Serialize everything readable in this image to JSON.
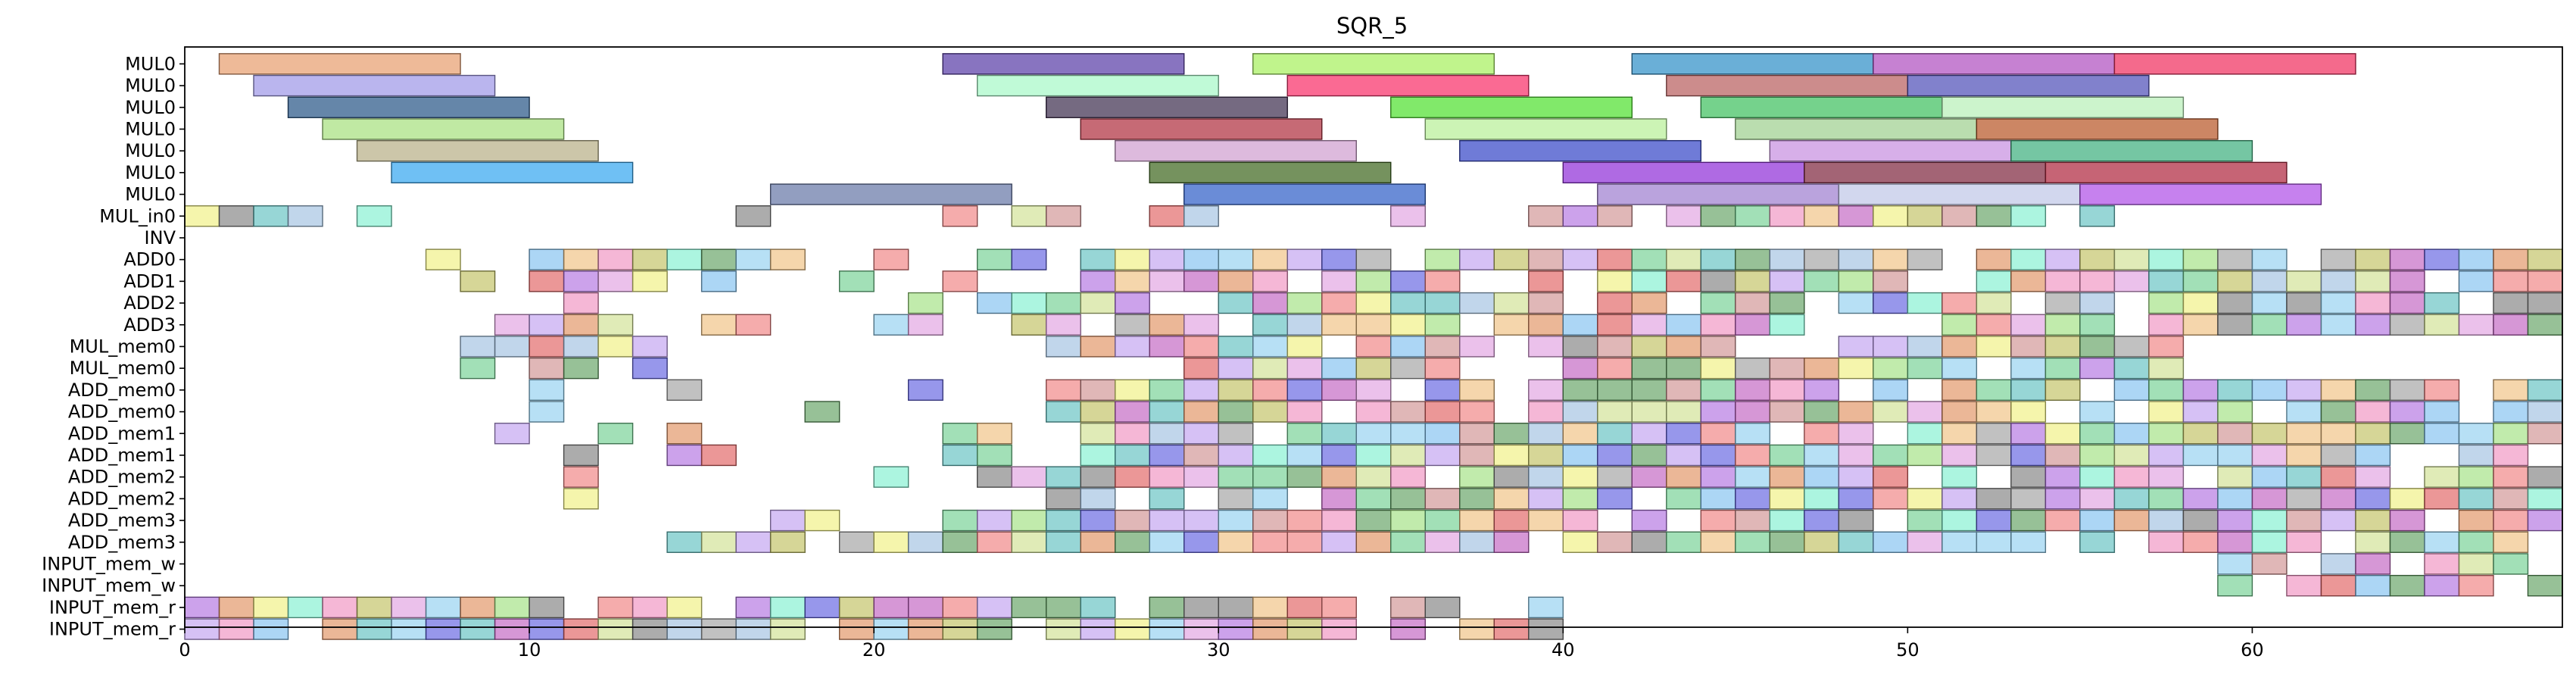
{
  "chart_data": {
    "type": "gantt",
    "title": "SQR_5",
    "xlim": [
      0,
      69
    ],
    "xticks": [
      0,
      10,
      20,
      30,
      40,
      50,
      60
    ],
    "rows": [
      "MUL0",
      "MUL0",
      "MUL0",
      "MUL0",
      "MUL0",
      "MUL0",
      "MUL0",
      "MUL_in0",
      "INV",
      "ADD0",
      "ADD1",
      "ADD2",
      "ADD3",
      "MUL_mem0",
      "MUL_mem0",
      "ADD_mem0",
      "ADD_mem0",
      "ADD_mem1",
      "ADD_mem1",
      "ADD_mem2",
      "ADD_mem2",
      "ADD_mem3",
      "ADD_mem3",
      "INPUT_mem_w",
      "INPUT_mem_w",
      "INPUT_mem_r",
      "INPUT_mem_r"
    ],
    "long_bars": [
      {
        "row": 0,
        "start": 1,
        "end": 8,
        "color": "#e8a070"
      },
      {
        "row": 0,
        "start": 22,
        "end": 29,
        "color": "#5a3ea8"
      },
      {
        "row": 0,
        "start": 31,
        "end": 38,
        "color": "#a8f060"
      },
      {
        "row": 0,
        "start": 42,
        "end": 49,
        "color": "#3090c8"
      },
      {
        "row": 0,
        "start": 49,
        "end": 56,
        "color": "#b050c0"
      },
      {
        "row": 0,
        "start": 56,
        "end": 63,
        "color": "#f03060"
      },
      {
        "row": 1,
        "start": 2,
        "end": 9,
        "color": "#a098e8"
      },
      {
        "row": 1,
        "start": 23,
        "end": 30,
        "color": "#a8f8c8"
      },
      {
        "row": 1,
        "start": 32,
        "end": 39,
        "color": "#f8306a"
      },
      {
        "row": 1,
        "start": 43,
        "end": 50,
        "color": "#b86060"
      },
      {
        "row": 1,
        "start": 50,
        "end": 57,
        "color": "#5050b8"
      },
      {
        "row": 2,
        "start": 3,
        "end": 10,
        "color": "#2a5888"
      },
      {
        "row": 2,
        "start": 25,
        "end": 32,
        "color": "#403050"
      },
      {
        "row": 2,
        "start": 35,
        "end": 42,
        "color": "#50e030"
      },
      {
        "row": 2,
        "start": 44,
        "end": 51,
        "color": "#40c060"
      },
      {
        "row": 2,
        "start": 51,
        "end": 58,
        "color": "#b8f0b8"
      },
      {
        "row": 3,
        "start": 4,
        "end": 11,
        "color": "#a8e080"
      },
      {
        "row": 3,
        "start": 26,
        "end": 33,
        "color": "#b03040"
      },
      {
        "row": 3,
        "start": 36,
        "end": 43,
        "color": "#b8f098"
      },
      {
        "row": 3,
        "start": 45,
        "end": 52,
        "color": "#a0d090"
      },
      {
        "row": 3,
        "start": 52,
        "end": 59,
        "color": "#b85828"
      },
      {
        "row": 4,
        "start": 5,
        "end": 12,
        "color": "#b8b088"
      },
      {
        "row": 4,
        "start": 27,
        "end": 34,
        "color": "#d0a0d0"
      },
      {
        "row": 4,
        "start": 37,
        "end": 44,
        "color": "#3848c8"
      },
      {
        "row": 4,
        "start": 46,
        "end": 53,
        "color": "#c890e0"
      },
      {
        "row": 4,
        "start": 53,
        "end": 60,
        "color": "#40b080"
      },
      {
        "row": 5,
        "start": 6,
        "end": 13,
        "color": "#38a8f0"
      },
      {
        "row": 5,
        "start": 28,
        "end": 35,
        "color": "#406820"
      },
      {
        "row": 5,
        "start": 40,
        "end": 47,
        "color": "#9030d8"
      },
      {
        "row": 5,
        "start": 47,
        "end": 54,
        "color": "#802840"
      },
      {
        "row": 5,
        "start": 54,
        "end": 61,
        "color": "#b02840"
      },
      {
        "row": 6,
        "start": 17,
        "end": 24,
        "color": "#6878a8"
      },
      {
        "row": 6,
        "start": 29,
        "end": 36,
        "color": "#3060c8"
      },
      {
        "row": 6,
        "start": 41,
        "end": 48,
        "color": "#a080d0"
      },
      {
        "row": 6,
        "start": 48,
        "end": 55,
        "color": "#c0c8e8"
      },
      {
        "row": 6,
        "start": 55,
        "end": 62,
        "color": "#b050e8"
      }
    ]
  }
}
